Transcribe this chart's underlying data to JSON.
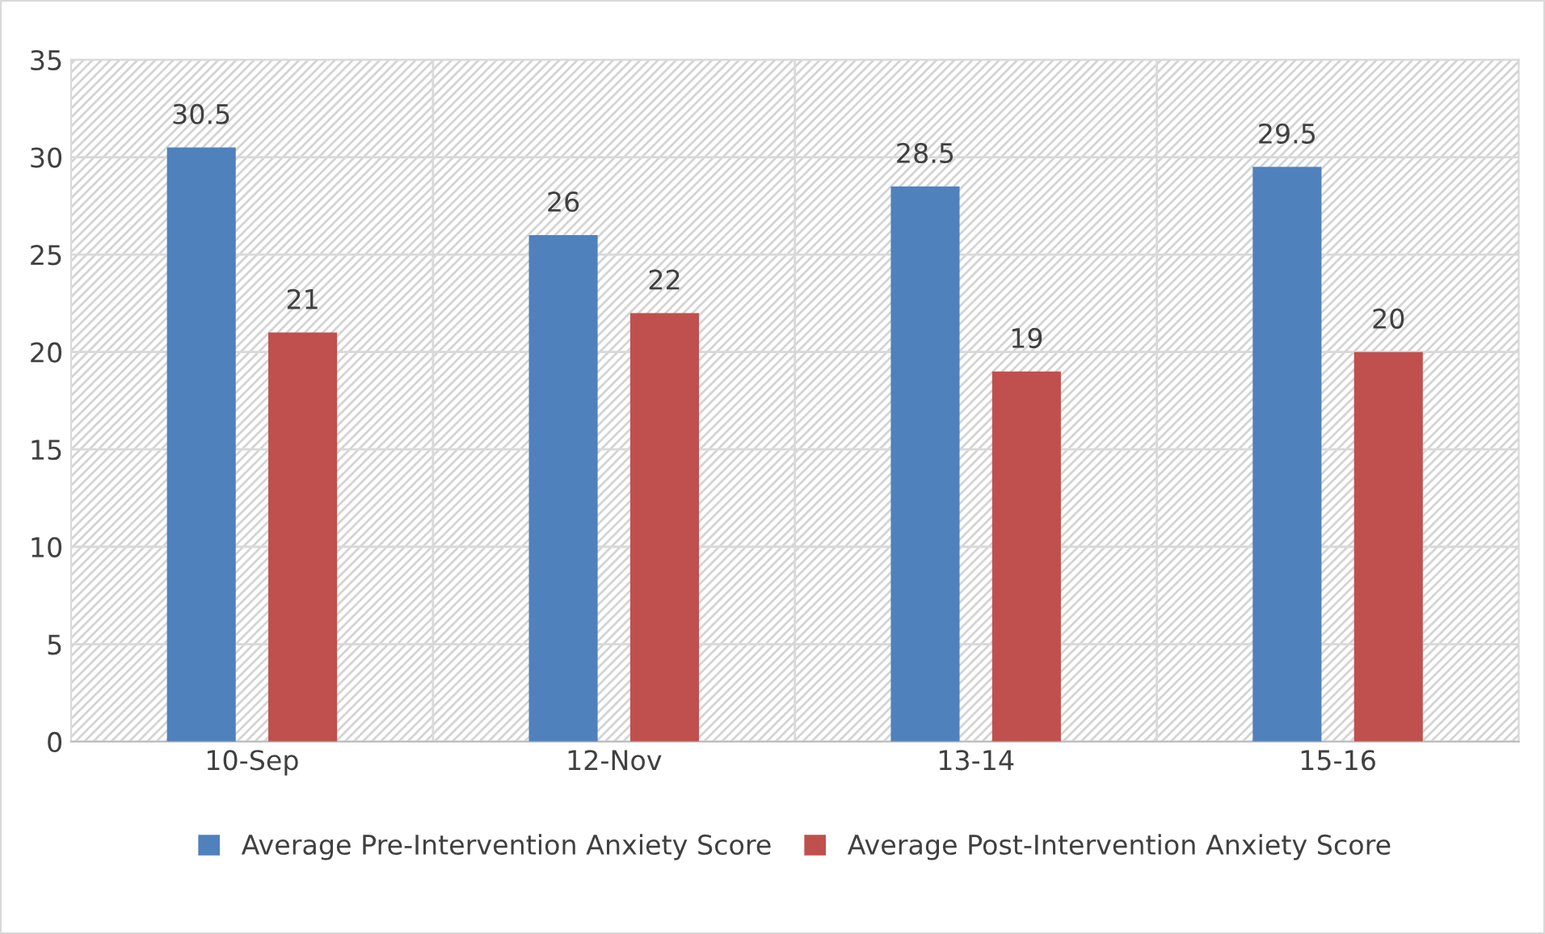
{
  "chart_data": {
    "type": "bar",
    "categories": [
      "10-Sep",
      "12-Nov",
      "13-14",
      "15-16"
    ],
    "series": [
      {
        "name": "Average Pre-Intervention Anxiety Score",
        "color": "#4f81bd",
        "values": [
          30.5,
          26,
          28.5,
          29.5
        ]
      },
      {
        "name": "Average Post-Intervention Anxiety Score",
        "color": "#c0504d",
        "values": [
          21,
          22,
          19,
          20
        ]
      }
    ],
    "ylim": [
      0,
      35
    ],
    "yticks": [
      0,
      5,
      10,
      15,
      20,
      25,
      30,
      35
    ],
    "grid": true,
    "legend": "bottom",
    "data_labels": true
  }
}
